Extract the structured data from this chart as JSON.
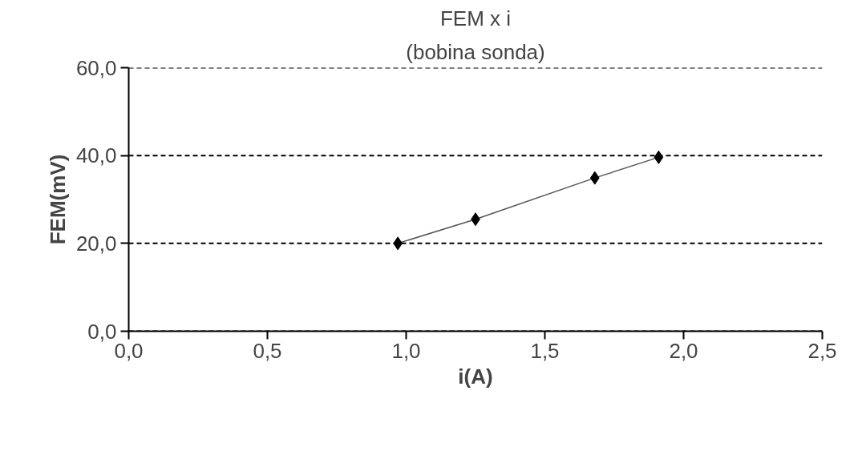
{
  "chart_data": {
    "type": "line",
    "title": "FEM x i",
    "subtitle": "(bobina sonda)",
    "xlabel": "i(A)",
    "ylabel": "FEM(mV)",
    "x": [
      0.97,
      1.25,
      1.68,
      1.91
    ],
    "series": [
      {
        "color": "#000000",
        "values": [
          20.0,
          25.5,
          34.9,
          39.6
        ]
      }
    ],
    "marker": "diamond",
    "line_style": "solid",
    "grid": "y",
    "xlim": [
      0,
      2.5
    ],
    "xticks": [
      {
        "value": 0,
        "label": "0,0"
      },
      {
        "value": 0.5,
        "label": "0,5"
      },
      {
        "value": 1,
        "label": "1,0"
      },
      {
        "value": 1.5,
        "label": "1,5"
      },
      {
        "value": 2,
        "label": "2,0"
      },
      {
        "value": 2.5,
        "label": "2,5"
      }
    ],
    "ylim": [
      0,
      60
    ],
    "yticks": [
      {
        "value": 0,
        "label": "0,0"
      },
      {
        "value": 20,
        "label": "20,0"
      },
      {
        "value": 40,
        "label": "40,0"
      },
      {
        "value": 60,
        "label": "60,0"
      }
    ]
  }
}
